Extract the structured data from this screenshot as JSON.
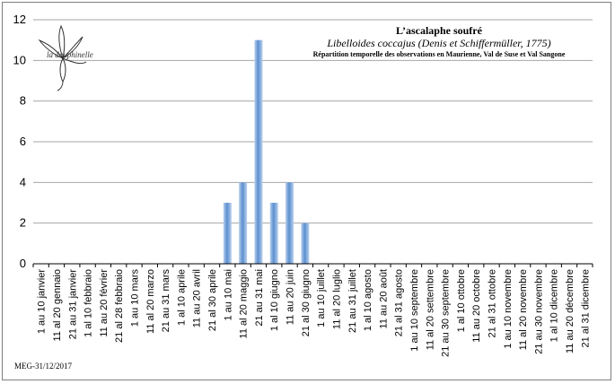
{
  "logo": {
    "text": "la dauphinelle",
    "icon": "flower-icon"
  },
  "footer": "MEG-31/12/2017",
  "chart_data": {
    "type": "bar",
    "title": "L’ascalaphe soufré",
    "subtitle": "Libelloides coccajus (Denis et Schiffermüller, 1775)",
    "note": "Répartition temporelle des observations en Maurienne, Val de Suse et Val Sangone",
    "xlabel": "",
    "ylabel": "",
    "ylim": [
      0,
      12
    ],
    "yticks": [
      0,
      2,
      4,
      6,
      8,
      10,
      12
    ],
    "grid": true,
    "bar_color": "#5b8fd0",
    "categories": [
      "1 au 10 janvier",
      "11 al 20 gennaio",
      "21 au 31 janvier",
      "1 al 10 febbraio",
      "11 au 20 février",
      "21 al 28 febbraio",
      "1 au 10 mars",
      "11 al 20 marzo",
      "21 au 31 mars",
      "1 al 10 aprile",
      "11 au 20 avril",
      "21 al 30 aprile",
      "1 au 10 mai",
      "11 al 20 maggio",
      "21 au 31 mai",
      "1 al 10 giugno",
      "11 au 20 juin",
      "21 al 30 giugno",
      "1 au 10 juillet",
      "11 al 20 luglio",
      "21 au 31 juillet",
      "1 al 10 agosto",
      "11 au 20 août",
      "21 al 31 agosto",
      "1 au 10 septembre",
      "11 al 20 settembre",
      "21 au 30 septembre",
      "1 al 10 ottobre",
      "11 au 20 octobre",
      "21 al 31 ottobre",
      "1 au 10 novembre",
      "11 al 20 novembre",
      "21 au 30 novembre",
      "1 al 10 dicembre",
      "11 au 20 décembre",
      "21 al 31 dicembre"
    ],
    "values": [
      0,
      0,
      0,
      0,
      0,
      0,
      0,
      0,
      0,
      0,
      0,
      0,
      3,
      4,
      11,
      3,
      4,
      2,
      0,
      0,
      0,
      0,
      0,
      0,
      0,
      0,
      0,
      0,
      0,
      0,
      0,
      0,
      0,
      0,
      0,
      0
    ]
  }
}
